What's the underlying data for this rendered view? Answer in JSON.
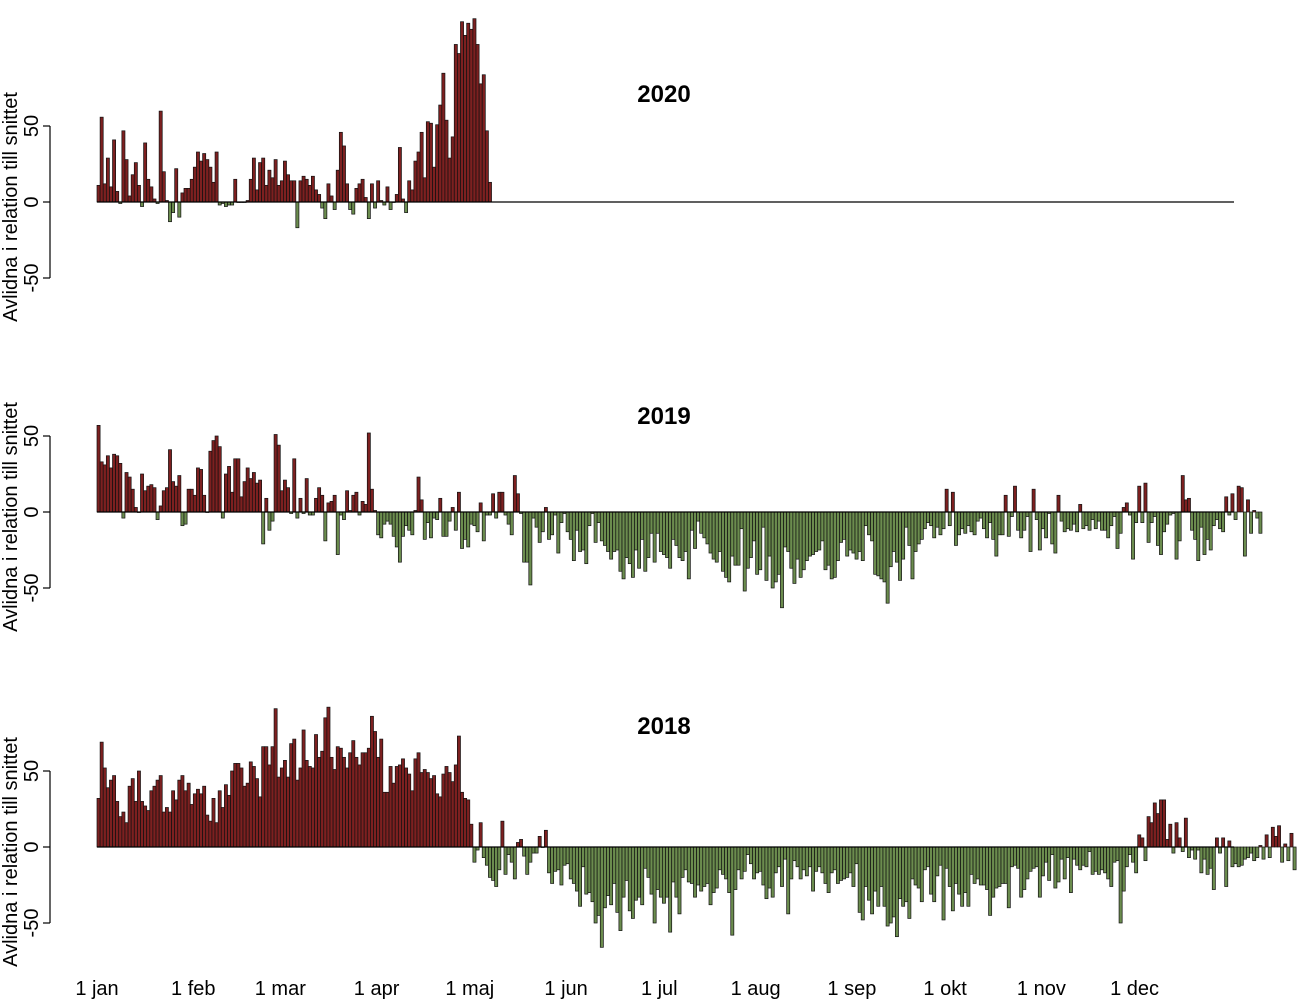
{
  "colors": {
    "positive": "#7d2020",
    "negative": "#6b8c4e",
    "zero_line": "#000000",
    "bar_stroke": "#111111"
  },
  "x_axis": {
    "ticks": [
      "1 jan",
      "1 feb",
      "1 mar",
      "1 apr",
      "1 maj",
      "1 jun",
      "1 jul",
      "1 aug",
      "1 sep",
      "1 okt",
      "1 nov",
      "1 dec"
    ],
    "tick_days": [
      1,
      32,
      60,
      91,
      121,
      152,
      182,
      213,
      244,
      274,
      305,
      335
    ]
  },
  "chart_data": [
    {
      "type": "bar",
      "title": "2020",
      "ylabel": "Avlidna i relation till snittet",
      "yticks": [
        "50",
        "0",
        "-50"
      ],
      "ylim": [
        -55,
        120
      ],
      "x": "day of year (1–366)",
      "days_shown": 366,
      "values": [
        11,
        56,
        12,
        29,
        10,
        41,
        7,
        -1,
        47,
        28,
        4,
        18,
        26,
        11,
        -3,
        39,
        15,
        10,
        2,
        -1,
        60,
        20,
        1,
        -13,
        -7,
        22,
        -10,
        6,
        9,
        9,
        15,
        23,
        33,
        27,
        32,
        28,
        23,
        13,
        33,
        -2,
        -1,
        -3,
        -2,
        -2,
        15,
        0,
        0,
        0,
        1,
        15,
        29,
        8,
        26,
        29,
        11,
        21,
        16,
        28,
        11,
        14,
        27,
        18,
        14,
        14,
        -17,
        14,
        17,
        15,
        11,
        17,
        8,
        5,
        -4,
        -11,
        12,
        4,
        -5,
        21,
        46,
        37,
        12,
        -5,
        -8,
        9,
        12,
        15,
        3,
        -11,
        12,
        -4,
        14,
        1,
        -2,
        10,
        -5,
        0,
        5,
        36,
        2,
        -7,
        14,
        8,
        27,
        33,
        46,
        16,
        53,
        52,
        23,
        51,
        64,
        85,
        54,
        29,
        43,
        104,
        98,
        119,
        110,
        118,
        114,
        121,
        104,
        78,
        84,
        47,
        13
      ],
      "value_count_note": ""
    },
    {
      "type": "bar",
      "title": "2019",
      "ylabel": "Avlidna i relation till snittet",
      "yticks": [
        "50",
        "0",
        "-50"
      ],
      "ylim": [
        -65,
        60
      ],
      "values": [
        57,
        33,
        31,
        37,
        29,
        38,
        37,
        32,
        -4,
        26,
        23,
        15,
        3,
        0,
        25,
        14,
        17,
        18,
        16,
        -5,
        4,
        14,
        16,
        41,
        20,
        17,
        24,
        -9,
        -8,
        15,
        15,
        11,
        29,
        28,
        11,
        0,
        40,
        47,
        50,
        43,
        -4,
        25,
        30,
        13,
        35,
        35,
        10,
        20,
        29,
        22,
        26,
        19,
        21,
        -21,
        9,
        -12,
        -6,
        51,
        44,
        14,
        21,
        16,
        -1,
        35,
        -4,
        9,
        -1,
        22,
        -2,
        -2,
        9,
        16,
        11,
        -19,
        6,
        7,
        11,
        -28,
        -2,
        -5,
        14,
        1,
        11,
        13,
        -2,
        7,
        5,
        52,
        15,
        1,
        -15,
        -17,
        -8,
        -6,
        -8,
        -16,
        -23,
        -33,
        -16,
        -9,
        -12,
        -15,
        1,
        23,
        8,
        -18,
        -7,
        -17,
        -4,
        -5,
        9,
        -16,
        -16,
        -6,
        3,
        -12,
        13,
        -24,
        -18,
        -23,
        -8,
        -9,
        -13,
        6,
        -19,
        -2,
        -2,
        12,
        -4,
        13,
        13,
        -2,
        -8,
        -15,
        24,
        12,
        -1,
        -33,
        -33,
        -48,
        -4,
        -10,
        -20,
        -13,
        3,
        -18,
        -15,
        -2,
        -27,
        -7,
        -1,
        -13,
        -18,
        -32,
        -12,
        -26,
        -25,
        -34,
        -9,
        -1,
        -20,
        -7,
        -19,
        -22,
        -26,
        -31,
        -26,
        -25,
        -39,
        -44,
        -30,
        -34,
        -43,
        -25,
        -37,
        -18,
        -39,
        -30,
        -14,
        -33,
        -14,
        -26,
        -28,
        -30,
        -37,
        -18,
        -22,
        -30,
        -32,
        -26,
        -44,
        -12,
        -24,
        -6,
        -14,
        -17,
        -21,
        -27,
        -31,
        -33,
        -26,
        -39,
        -43,
        -46,
        -29,
        -35,
        -35,
        -11,
        -52,
        -37,
        -30,
        -19,
        -41,
        -38,
        -10,
        -45,
        -29,
        -50,
        -46,
        -41,
        -63,
        -23,
        -26,
        -37,
        -47,
        -31,
        -43,
        -38,
        -32,
        -29,
        -28,
        -26,
        -25,
        -19,
        -38,
        -35,
        -44,
        -43,
        -32,
        -20,
        -18,
        -29,
        -25,
        -27,
        -31,
        -26,
        -32,
        -9,
        -15,
        -19,
        -41,
        -42,
        -44,
        -46,
        -60,
        -36,
        -26,
        -33,
        -45,
        -31,
        -10,
        -22,
        -44,
        -26,
        -21,
        -18,
        -11,
        -7,
        -9,
        -17,
        -10,
        -15,
        -11,
        15,
        -9,
        13,
        -22,
        -15,
        -11,
        -14,
        -9,
        -13,
        -15,
        -6,
        -4,
        -11,
        -17,
        -7,
        -18,
        -29,
        -15,
        -15,
        11,
        -16,
        -3,
        17,
        -12,
        -17,
        -12,
        -3,
        -26,
        15,
        -5,
        -25,
        -11,
        -17,
        -1,
        -21,
        -27,
        11,
        -6,
        -13,
        -11,
        -12,
        -8,
        -13,
        5,
        -11,
        -9,
        -12,
        -5,
        -11,
        -6,
        -12,
        -12,
        -17,
        -9,
        -3,
        -24,
        -14,
        3,
        6,
        -2,
        -31,
        -7,
        17,
        -7,
        19,
        -20,
        -7,
        -3,
        -22,
        -28,
        -13,
        -8,
        -2,
        -1,
        -31,
        -19,
        24,
        8,
        9,
        -12,
        -18,
        -32,
        -10,
        -28,
        -18,
        -25,
        -9,
        -5,
        -11,
        -13,
        10,
        -2,
        12,
        -5,
        17,
        16,
        -29,
        8,
        -14,
        1,
        -4,
        -14
      ],
      "value_count_note": ""
    },
    {
      "type": "bar",
      "title": "2018",
      "ylabel": "Avlidna i relation till snittet",
      "yticks": [
        "50",
        "0",
        "-50"
      ],
      "ylim": [
        -70,
        95
      ],
      "values": [
        32,
        69,
        52,
        39,
        44,
        47,
        30,
        20,
        23,
        16,
        40,
        45,
        30,
        50,
        30,
        27,
        24,
        37,
        40,
        44,
        47,
        23,
        26,
        23,
        37,
        31,
        44,
        47,
        37,
        42,
        28,
        35,
        38,
        35,
        40,
        21,
        17,
        32,
        16,
        37,
        26,
        41,
        34,
        50,
        55,
        55,
        52,
        40,
        42,
        56,
        53,
        45,
        33,
        66,
        66,
        54,
        66,
        91,
        46,
        52,
        57,
        46,
        68,
        71,
        44,
        52,
        77,
        57,
        53,
        52,
        74,
        59,
        63,
        85,
        92,
        59,
        51,
        66,
        65,
        59,
        52,
        62,
        70,
        59,
        54,
        62,
        62,
        65,
        86,
        76,
        59,
        71,
        36,
        36,
        53,
        42,
        53,
        54,
        58,
        52,
        48,
        37,
        58,
        62,
        49,
        51,
        49,
        45,
        47,
        35,
        33,
        48,
        53,
        49,
        43,
        54,
        73,
        36,
        32,
        31,
        15,
        -10,
        -2,
        16,
        -7,
        -12,
        -20,
        -22,
        -26,
        -15,
        17,
        -18,
        -5,
        -10,
        -21,
        3,
        5,
        -6,
        -18,
        -10,
        -4,
        -4,
        7,
        0,
        11,
        -17,
        -24,
        -16,
        -15,
        -25,
        -12,
        -11,
        -21,
        -24,
        -29,
        -39,
        -13,
        -31,
        -30,
        -36,
        -50,
        -45,
        -66,
        -40,
        -32,
        -38,
        -24,
        -43,
        -55,
        -33,
        -22,
        -42,
        -47,
        -35,
        -33,
        -38,
        -14,
        -20,
        -31,
        -50,
        -28,
        -33,
        -37,
        -33,
        -56,
        -23,
        -33,
        -44,
        -20,
        -15,
        -23,
        -24,
        -33,
        -25,
        -29,
        -26,
        -24,
        -38,
        -30,
        -27,
        -15,
        -18,
        -21,
        -30,
        -58,
        -28,
        -15,
        -21,
        -16,
        -5,
        -11,
        -21,
        -17,
        -16,
        -25,
        -34,
        -27,
        -33,
        -17,
        -13,
        -26,
        -8,
        -44,
        -21,
        -9,
        -13,
        -21,
        -15,
        -19,
        -13,
        -29,
        -16,
        -13,
        -17,
        -24,
        -30,
        -17,
        -15,
        -24,
        -22,
        -21,
        -20,
        -17,
        -26,
        -11,
        -43,
        -48,
        -26,
        -35,
        -44,
        -29,
        -39,
        -26,
        -39,
        -52,
        -50,
        -46,
        -59,
        -34,
        -39,
        -36,
        -47,
        -21,
        -25,
        -27,
        -36,
        -15,
        -13,
        -31,
        -36,
        -19,
        -12,
        -48,
        -14,
        -26,
        -42,
        -24,
        -31,
        -39,
        -30,
        -39,
        -18,
        -24,
        -21,
        -25,
        -25,
        -28,
        -45,
        -33,
        -27,
        -26,
        -24,
        -24,
        -40,
        -13,
        -12,
        -14,
        -33,
        -28,
        -21,
        -16,
        -14,
        -13,
        -33,
        -19,
        -10,
        -22,
        -5,
        -27,
        -23,
        -8,
        -21,
        -7,
        -30,
        -8,
        -12,
        -15,
        -12,
        -13,
        -3,
        -18,
        -16,
        -18,
        -15,
        -17,
        -21,
        -26,
        -10,
        -9,
        -50,
        -29,
        -13,
        -5,
        -10,
        -17,
        8,
        6,
        -9,
        20,
        16,
        29,
        22,
        31,
        31,
        5,
        15,
        -4,
        16,
        6,
        -3,
        19,
        -7,
        -2,
        -8,
        -2,
        -17,
        -8,
        -18,
        -14,
        -28,
        6,
        -4,
        6,
        -26,
        4,
        -13,
        -11,
        -13,
        -12,
        -8,
        -7,
        -4,
        -9,
        -7,
        1,
        -8,
        8,
        -7,
        13,
        7,
        14,
        -10,
        2,
        -9,
        9,
        -15
      ],
      "value_count_note": ""
    }
  ]
}
